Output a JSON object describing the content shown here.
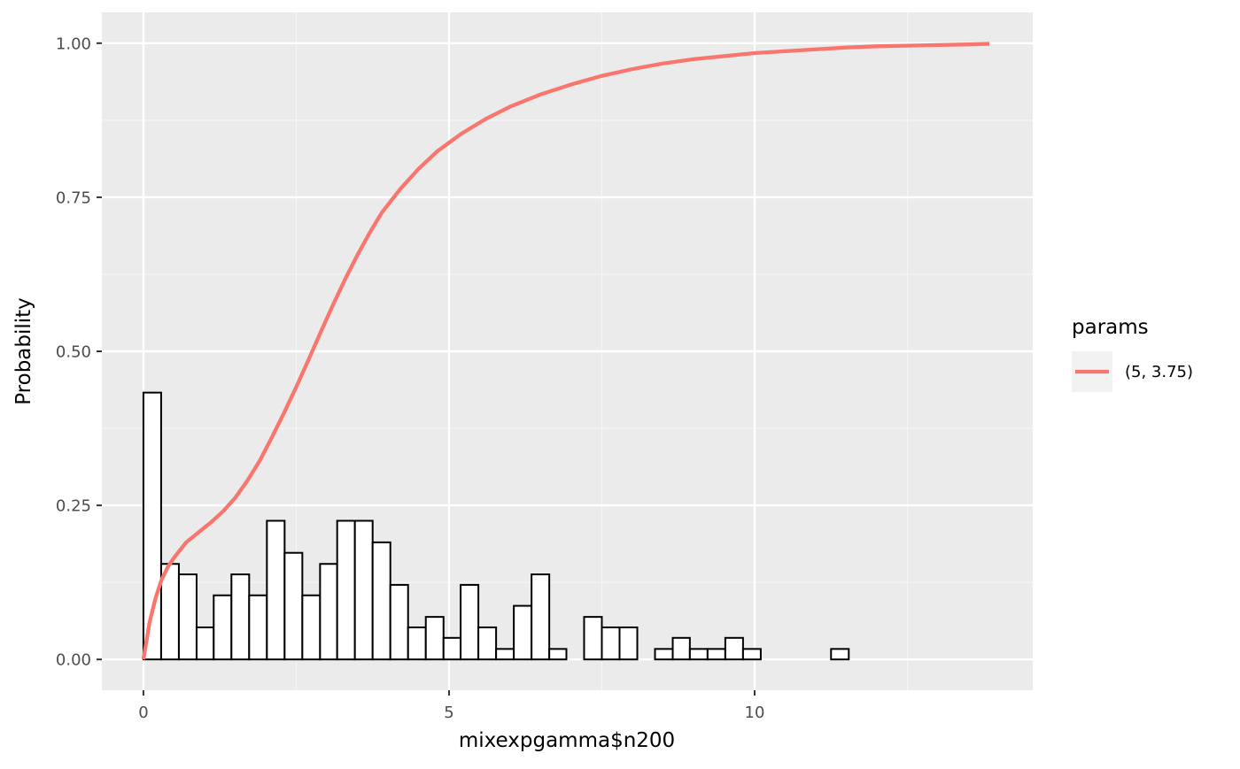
{
  "chart_data": {
    "type": "bar",
    "xlabel": "mixexpgamma$n200",
    "ylabel": "Probability",
    "xlim": [
      -0.68,
      14.55
    ],
    "ylim": [
      -0.05,
      1.05
    ],
    "x_ticks": [
      0,
      5,
      10
    ],
    "x_tick_labels": [
      "0",
      "5",
      "10"
    ],
    "x_minor_ticks": [
      2.5,
      7.5,
      12.5
    ],
    "y_ticks": [
      0,
      0.25,
      0.5,
      0.75,
      1.0
    ],
    "y_tick_labels": [
      "0.00",
      "0.25",
      "0.50",
      "0.75",
      "1.00"
    ],
    "y_minor_ticks": [
      0.125,
      0.375,
      0.625,
      0.875
    ],
    "grid": true,
    "histogram": {
      "bin_width": 0.2885,
      "bins": [
        {
          "x0": 0.0,
          "x1": 0.29,
          "y": 0.433
        },
        {
          "x0": 0.29,
          "x1": 0.58,
          "y": 0.155
        },
        {
          "x0": 0.58,
          "x1": 0.87,
          "y": 0.138
        },
        {
          "x0": 0.87,
          "x1": 1.15,
          "y": 0.052
        },
        {
          "x0": 1.15,
          "x1": 1.44,
          "y": 0.104
        },
        {
          "x0": 1.44,
          "x1": 1.73,
          "y": 0.138
        },
        {
          "x0": 1.73,
          "x1": 2.02,
          "y": 0.104
        },
        {
          "x0": 2.02,
          "x1": 2.31,
          "y": 0.225
        },
        {
          "x0": 2.31,
          "x1": 2.6,
          "y": 0.173
        },
        {
          "x0": 2.6,
          "x1": 2.89,
          "y": 0.104
        },
        {
          "x0": 2.89,
          "x1": 3.17,
          "y": 0.155
        },
        {
          "x0": 3.17,
          "x1": 3.46,
          "y": 0.225
        },
        {
          "x0": 3.46,
          "x1": 3.75,
          "y": 0.225
        },
        {
          "x0": 3.75,
          "x1": 4.04,
          "y": 0.19
        },
        {
          "x0": 4.04,
          "x1": 4.33,
          "y": 0.121
        },
        {
          "x0": 4.33,
          "x1": 4.62,
          "y": 0.052
        },
        {
          "x0": 4.62,
          "x1": 4.91,
          "y": 0.069
        },
        {
          "x0": 4.91,
          "x1": 5.19,
          "y": 0.035
        },
        {
          "x0": 5.19,
          "x1": 5.48,
          "y": 0.121
        },
        {
          "x0": 5.48,
          "x1": 5.77,
          "y": 0.052
        },
        {
          "x0": 5.77,
          "x1": 6.06,
          "y": 0.017
        },
        {
          "x0": 6.06,
          "x1": 6.35,
          "y": 0.087
        },
        {
          "x0": 6.35,
          "x1": 6.64,
          "y": 0.138
        },
        {
          "x0": 6.64,
          "x1": 6.92,
          "y": 0.017
        },
        {
          "x0": 6.92,
          "x1": 7.21,
          "y": 0.0
        },
        {
          "x0": 7.21,
          "x1": 7.5,
          "y": 0.069
        },
        {
          "x0": 7.5,
          "x1": 7.79,
          "y": 0.052
        },
        {
          "x0": 7.79,
          "x1": 8.08,
          "y": 0.052
        },
        {
          "x0": 8.08,
          "x1": 8.37,
          "y": 0.0
        },
        {
          "x0": 8.37,
          "x1": 8.66,
          "y": 0.017
        },
        {
          "x0": 8.66,
          "x1": 8.94,
          "y": 0.035
        },
        {
          "x0": 8.94,
          "x1": 9.23,
          "y": 0.017
        },
        {
          "x0": 9.23,
          "x1": 9.52,
          "y": 0.017
        },
        {
          "x0": 9.52,
          "x1": 9.81,
          "y": 0.035
        },
        {
          "x0": 9.81,
          "x1": 10.1,
          "y": 0.017
        },
        {
          "x0": 10.1,
          "x1": 10.39,
          "y": 0.0
        },
        {
          "x0": 10.39,
          "x1": 10.68,
          "y": 0.0
        },
        {
          "x0": 10.68,
          "x1": 10.96,
          "y": 0.0
        },
        {
          "x0": 10.96,
          "x1": 11.25,
          "y": 0.0
        },
        {
          "x0": 11.25,
          "x1": 11.54,
          "y": 0.017
        }
      ]
    },
    "series": [
      {
        "name": "(5, 3.75)",
        "color": "#f8766d",
        "type": "line",
        "x": [
          0,
          0.05,
          0.1,
          0.2,
          0.3,
          0.4,
          0.5,
          0.7,
          0.9,
          1.1,
          1.3,
          1.5,
          1.7,
          1.9,
          2.1,
          2.3,
          2.5,
          2.7,
          2.9,
          3.1,
          3.3,
          3.5,
          3.7,
          3.9,
          4.2,
          4.5,
          4.8,
          5.2,
          5.6,
          6.0,
          6.5,
          7.0,
          7.5,
          8.0,
          8.5,
          9.0,
          9.5,
          10.0,
          10.5,
          11.0,
          11.5,
          12.0,
          12.5,
          13.0,
          13.5,
          13.84
        ],
        "y": [
          0.0,
          0.03,
          0.06,
          0.1,
          0.13,
          0.15,
          0.165,
          0.19,
          0.206,
          0.222,
          0.24,
          0.262,
          0.29,
          0.322,
          0.36,
          0.4,
          0.442,
          0.486,
          0.531,
          0.575,
          0.617,
          0.656,
          0.692,
          0.725,
          0.763,
          0.796,
          0.824,
          0.853,
          0.877,
          0.897,
          0.917,
          0.933,
          0.947,
          0.958,
          0.967,
          0.974,
          0.979,
          0.984,
          0.987,
          0.99,
          0.993,
          0.995,
          0.996,
          0.997,
          0.998,
          0.999
        ]
      }
    ],
    "legend": {
      "title": "params",
      "position": "right",
      "entries": [
        {
          "label": "(5, 3.75)",
          "color": "#f8766d"
        }
      ]
    },
    "colors": {
      "panel_background": "#ebebeb",
      "grid_major": "#ffffff",
      "grid_minor": "#f5f5f5",
      "bar_fill": "#ffffff",
      "bar_stroke": "#000000",
      "tick_text": "#4d4d4d",
      "tick_mark": "#333333",
      "legend_key_background": "#f2f2f2"
    }
  }
}
